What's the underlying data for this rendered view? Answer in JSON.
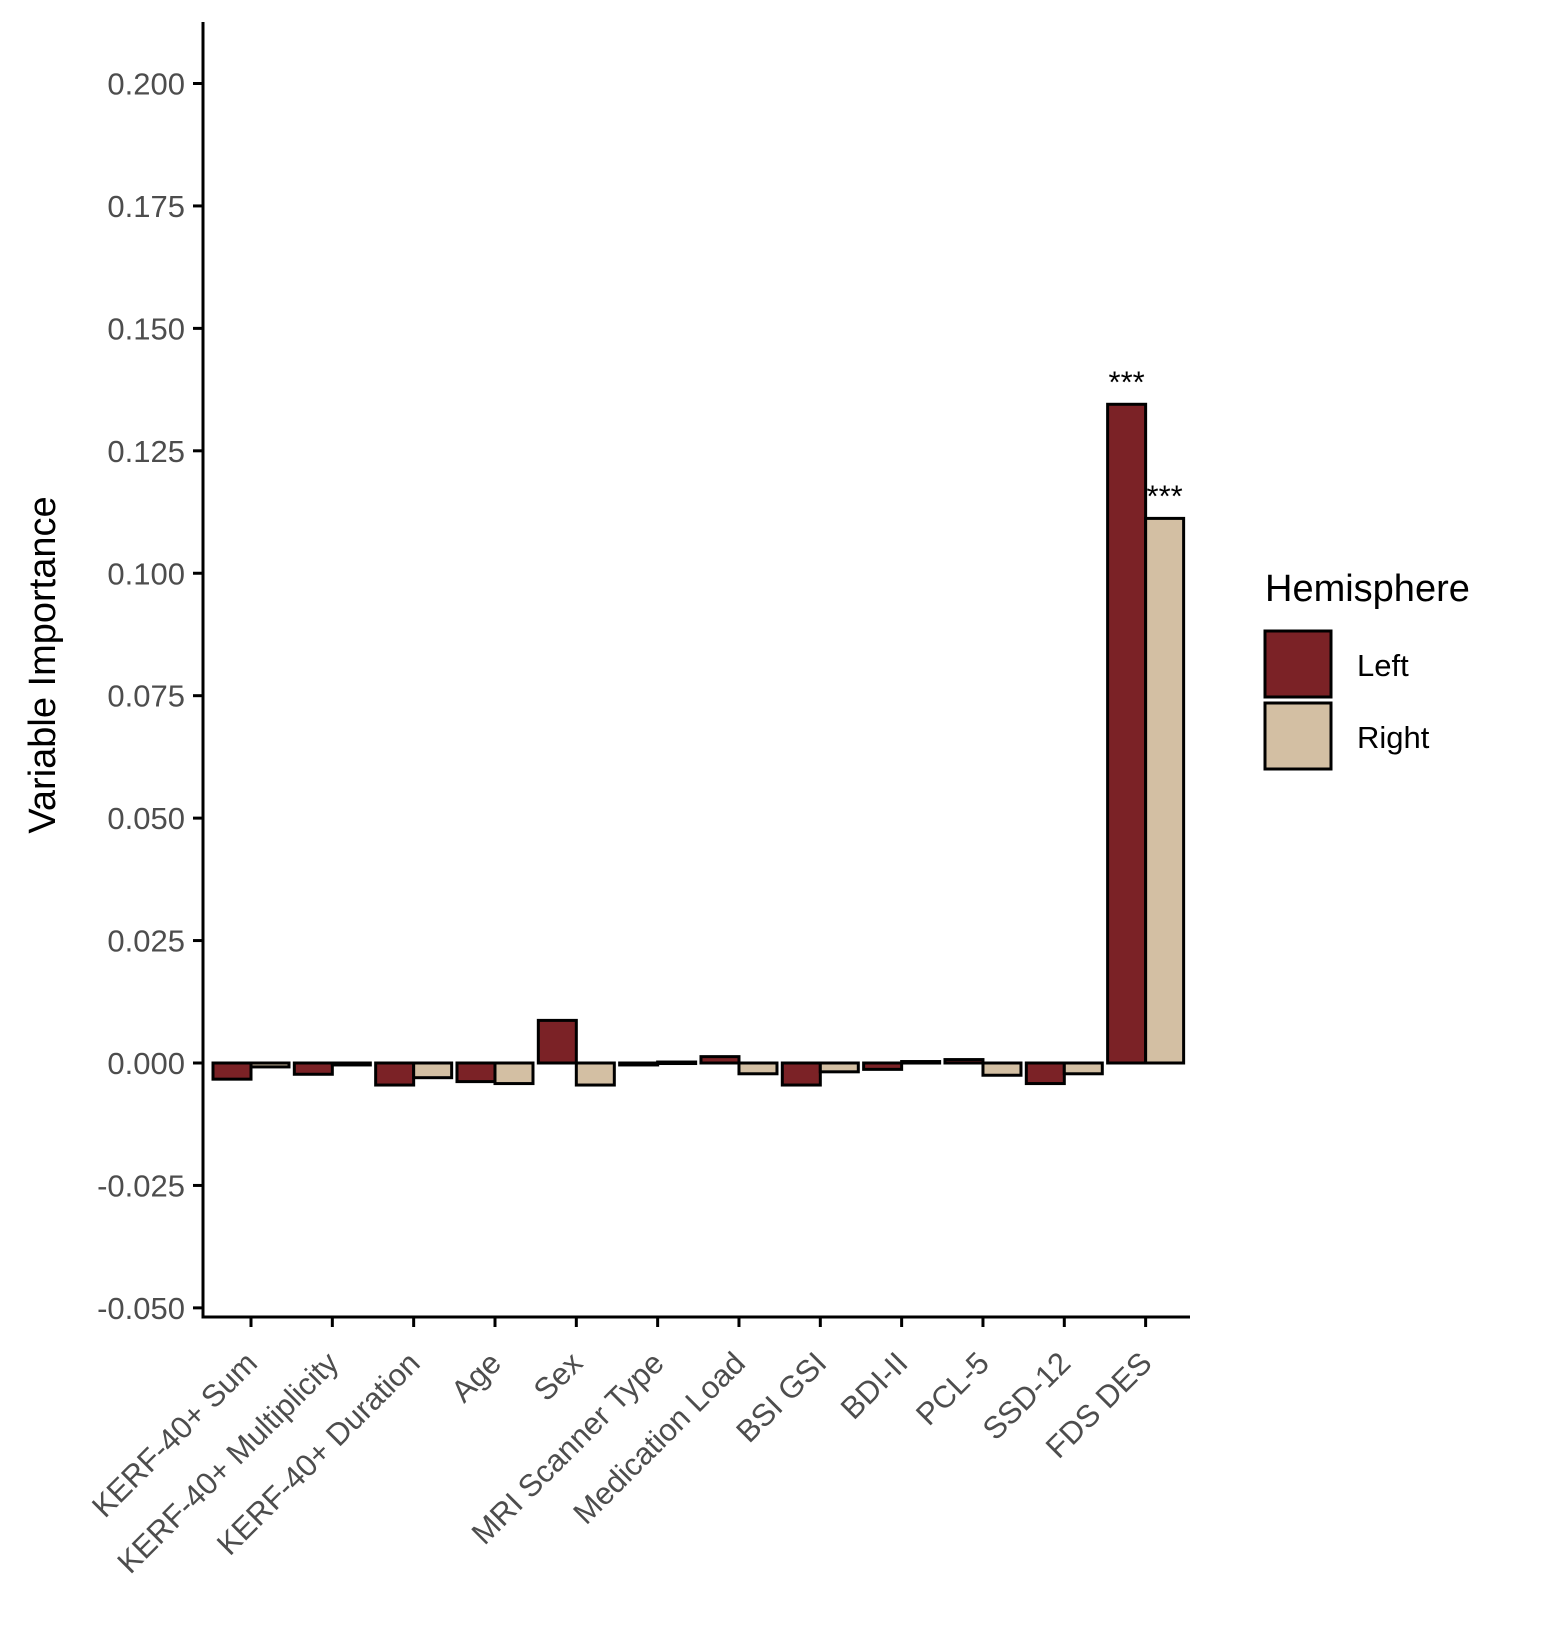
{
  "chart_data": {
    "type": "bar",
    "ylabel": "Variable Importance",
    "xlabel": "",
    "ylim": [
      -0.05,
      0.2
    ],
    "yticks": [
      -0.05,
      -0.025,
      0.0,
      0.025,
      0.05,
      0.075,
      0.1,
      0.125,
      0.15,
      0.175,
      0.2
    ],
    "ytick_labels": [
      "-0.050",
      "-0.025",
      "0.000",
      "0.025",
      "0.050",
      "0.075",
      "0.100",
      "0.125",
      "0.150",
      "0.175",
      "0.200"
    ],
    "categories": [
      "KERF-40+ Sum",
      "KERF-40+ Multiplicity",
      "KERF-40+ Duration",
      "Age",
      "Sex",
      "MRI Scanner Type",
      "Medication Load",
      "BSI GSI",
      "BDI-II",
      "PCL-5",
      "SSD-12",
      "FDS DES"
    ],
    "series": [
      {
        "name": "Left",
        "color": "#7b2226",
        "values": [
          -0.0033,
          -0.0023,
          -0.0045,
          -0.0038,
          0.0087,
          -0.0004,
          0.0013,
          -0.0045,
          -0.0013,
          0.0007,
          -0.0042,
          0.1345
        ],
        "significance": [
          "",
          "",
          "",
          "",
          "",
          "",
          "",
          "",
          "",
          "",
          "",
          "***"
        ]
      },
      {
        "name": "Right",
        "color": "#d3bfa3",
        "values": [
          -0.0008,
          -0.0004,
          -0.003,
          -0.0042,
          -0.0045,
          0.0002,
          -0.0022,
          -0.0018,
          0.0003,
          -0.0025,
          -0.0022,
          0.1112
        ],
        "significance": [
          "",
          "",
          "",
          "",
          "",
          "",
          "",
          "",
          "",
          "",
          "",
          "***"
        ]
      }
    ],
    "legend": {
      "title": "Hemisphere",
      "position": "right"
    },
    "grid": false
  }
}
